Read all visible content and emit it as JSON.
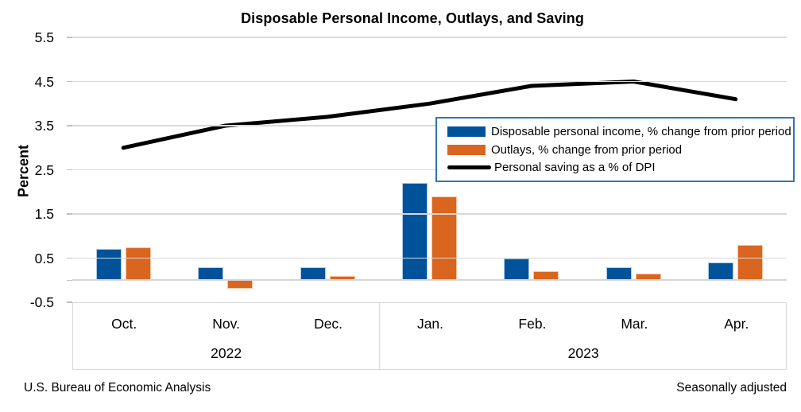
{
  "footer": {
    "left": "U.S. Bureau of Economic Analysis",
    "right": "Seasonally adjusted"
  },
  "chart_data": {
    "type": "bar+line combo",
    "title": "Disposable Personal Income, Outlays, and Saving",
    "ylabel": "Percent",
    "xlabel": "",
    "categories": [
      "Oct.",
      "Nov.",
      "Dec.",
      "Jan.",
      "Feb.",
      "Mar.",
      "Apr."
    ],
    "year_groups": [
      {
        "label": "2022",
        "span": 3
      },
      {
        "label": "2023",
        "span": 4
      }
    ],
    "series": [
      {
        "name": "Disposable personal income, % change from prior period",
        "type": "bar",
        "color": "#00529B",
        "values": [
          0.7,
          0.3,
          0.3,
          2.2,
          0.5,
          0.3,
          0.4
        ]
      },
      {
        "name": "Outlays, % change from prior period",
        "type": "bar",
        "color": "#D9651F",
        "values": [
          0.75,
          -0.2,
          0.1,
          1.9,
          0.2,
          0.15,
          0.8
        ]
      },
      {
        "name": "Personal saving as a % of DPI",
        "type": "line",
        "color": "#000000",
        "values": [
          3.0,
          3.5,
          3.7,
          4.0,
          4.4,
          4.5,
          4.1
        ]
      }
    ],
    "yticks": [
      5.5,
      4.5,
      3.5,
      2.5,
      1.5,
      0.5,
      -0.5
    ],
    "ylim": [
      -0.5,
      5.5
    ],
    "grid": true,
    "gridline_color": "#D9D9D9",
    "legend_position": "upper right",
    "legend_border_color": "#2E74B5"
  }
}
